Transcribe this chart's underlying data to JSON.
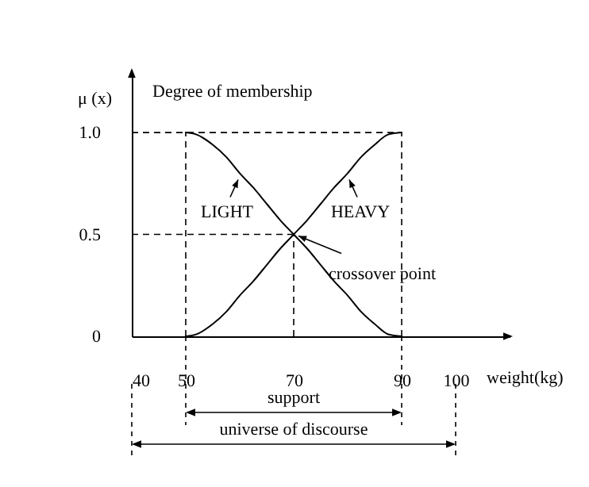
{
  "chart_data": {
    "type": "line",
    "xlabel": "weight(kg)",
    "ylabel": "μ (x)",
    "annotations": [
      "Degree of membership",
      {
        "text": "LIGHT",
        "x": 60,
        "y": 0.8
      },
      {
        "text": "HEAVY",
        "x": 80,
        "y": 0.8
      },
      {
        "text": "crossover point",
        "x": 70,
        "y": 0.5
      },
      "support",
      "universe of discourse"
    ],
    "x": [
      50,
      52,
      55,
      57.5,
      60,
      62.5,
      65,
      67.5,
      70,
      72.5,
      75,
      77.5,
      80,
      82.5,
      85,
      87.5,
      90
    ],
    "series": [
      {
        "color": "#000000",
        "values": [
          1,
          0.99,
          0.94,
          0.88,
          0.8,
          0.73,
          0.65,
          0.57,
          0.5,
          0.43,
          0.35,
          0.27,
          0.2,
          0.12,
          0.06,
          0.01,
          0
        ]
      },
      {
        "color": "#000000",
        "values": [
          0,
          0.01,
          0.06,
          0.12,
          0.2,
          0.27,
          0.35,
          0.43,
          0.5,
          0.57,
          0.65,
          0.73,
          0.8,
          0.88,
          0.94,
          0.99,
          1
        ]
      }
    ],
    "xlim": [
      40,
      110
    ],
    "xticks": [
      40,
      50,
      70,
      90,
      100
    ],
    "ylim": [
      0,
      1.3
    ],
    "yticks": [
      0,
      0.5,
      {
        "value": 1,
        "label": "1.0"
      }
    ],
    "ref_lines": [
      {
        "axis": "y",
        "value": 1,
        "line_style": "dashed"
      },
      {
        "axis": "y",
        "value": 0.5,
        "line_style": "dashed"
      },
      {
        "axis": "x",
        "value": 50,
        "line_style": "dashed"
      },
      {
        "axis": "x",
        "value": 70,
        "line_style": "dashed"
      },
      {
        "axis": "x",
        "value": 90,
        "line_style": "dashed"
      }
    ],
    "grid": false,
    "marker": "none",
    "line_style": "solid"
  }
}
